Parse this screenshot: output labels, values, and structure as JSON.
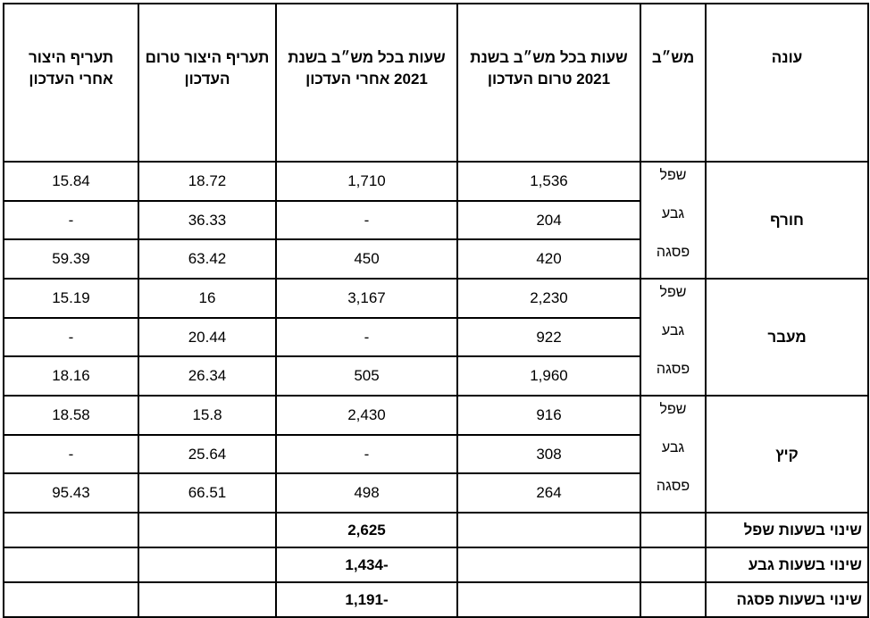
{
  "table": {
    "headers": [
      "עונה",
      "מש״ב",
      "שעות בכל מש״ב בשנת 2021 טרום העדכון",
      "שעות בכל מש״ב בשנת 2021 אחרי העדכון",
      "תעריף היצור טרום העדכון",
      "תעריף היצור אחרי העדכון"
    ],
    "seasons": [
      {
        "name": "חורף",
        "rows": [
          [
            "שפל",
            "1,536",
            "1,710",
            "18.72",
            "15.84"
          ],
          [
            "גבע",
            "204",
            "-",
            "36.33",
            "-"
          ],
          [
            "פסגה",
            "420",
            "450",
            "63.42",
            "59.39"
          ]
        ]
      },
      {
        "name": "מעבר",
        "rows": [
          [
            "שפל",
            "2,230",
            "3,167",
            "16",
            "15.19"
          ],
          [
            "גבע",
            "922",
            "-",
            "20.44",
            "-"
          ],
          [
            "פסגה",
            "1,960",
            "505",
            "26.34",
            "18.16"
          ]
        ]
      },
      {
        "name": "קיץ",
        "rows": [
          [
            "שפל",
            "916",
            "2,430",
            "15.8",
            "18.58"
          ],
          [
            "גבע",
            "308",
            "-",
            "25.64",
            "-"
          ],
          [
            "פסגה",
            "264",
            "498",
            "66.51",
            "95.43"
          ]
        ]
      }
    ],
    "summary": [
      {
        "label": "שינוי בשעות שפל",
        "value": "2,625"
      },
      {
        "label": "שינוי בשעות גבע",
        "value": "-1,434"
      },
      {
        "label": "שינוי בשעות פסגה",
        "value": "-1,191"
      }
    ]
  }
}
